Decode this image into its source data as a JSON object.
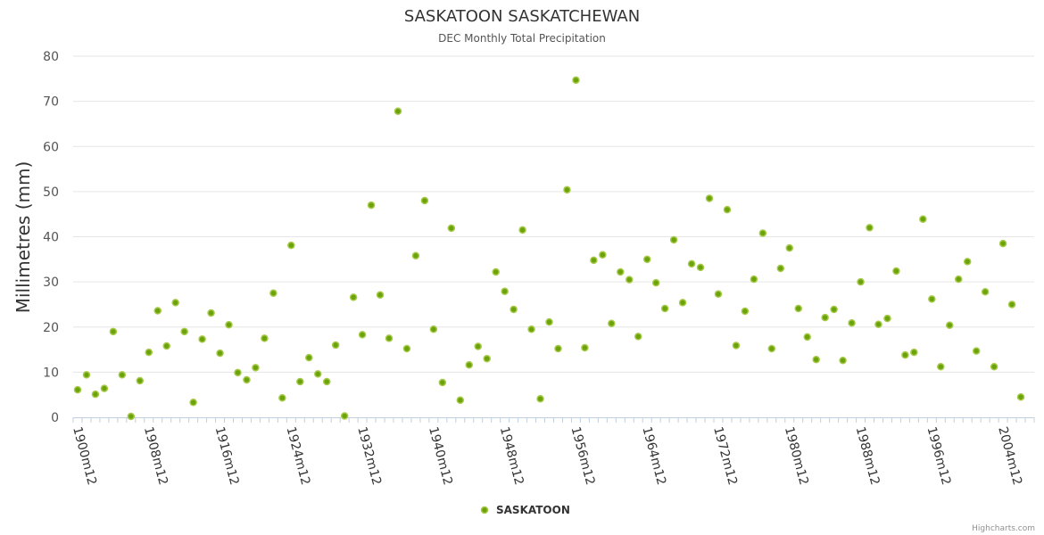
{
  "chart_data": {
    "type": "scatter",
    "title": "SASKATOON SASKATCHEWAN",
    "subtitle": "DEC Monthly Total Precipitation",
    "ylabel": "Millimetres (mm)",
    "xlabel": "",
    "ylim": [
      0,
      80
    ],
    "yticks": [
      "0",
      "10",
      "20",
      "30",
      "40",
      "50",
      "60",
      "70",
      "80"
    ],
    "x_start_year": 1900,
    "x_end_year": 2007,
    "x_tick_labels": [
      "1900m12",
      "1908m12",
      "1916m12",
      "1924m12",
      "1932m12",
      "1940m12",
      "1948m12",
      "1956m12",
      "1964m12",
      "1972m12",
      "1980m12",
      "1988m12",
      "1996m12",
      "2004m12"
    ],
    "series": [
      {
        "name": "SASKATOON",
        "color": "#6aa40a",
        "values": [
          6.1,
          9.4,
          5.1,
          6.4,
          19.0,
          9.4,
          0.2,
          8.1,
          14.4,
          23.6,
          15.8,
          25.4,
          19.0,
          3.3,
          17.3,
          23.1,
          14.2,
          20.5,
          9.9,
          8.3,
          11.0,
          17.5,
          27.5,
          4.3,
          38.1,
          7.9,
          13.2,
          9.6,
          7.9,
          16.0,
          0.3,
          26.6,
          18.3,
          47.0,
          27.1,
          17.5,
          67.8,
          15.2,
          35.8,
          48.0,
          19.5,
          7.7,
          41.9,
          3.8,
          11.6,
          15.7,
          13.0,
          32.2,
          27.9,
          23.9,
          41.5,
          19.5,
          4.1,
          21.1,
          15.2,
          50.4,
          74.7,
          15.4,
          34.8,
          36.0,
          20.8,
          32.2,
          30.5,
          17.9,
          35.0,
          29.8,
          24.1,
          39.3,
          25.4,
          34.0,
          33.2,
          48.5,
          27.3,
          46.0,
          15.9,
          23.5,
          30.6,
          40.8,
          15.2,
          33.0,
          37.5,
          24.1,
          17.8,
          12.8,
          22.1,
          23.9,
          12.6,
          20.9,
          30.0,
          42.0,
          20.6,
          21.9,
          32.4,
          13.8,
          14.4,
          43.9,
          26.2,
          11.2,
          20.4,
          30.6,
          34.5,
          14.7,
          27.8,
          11.2,
          38.5,
          25.0,
          4.5
        ]
      }
    ],
    "legend": "bottom-center"
  },
  "credits": "Highcharts.com"
}
